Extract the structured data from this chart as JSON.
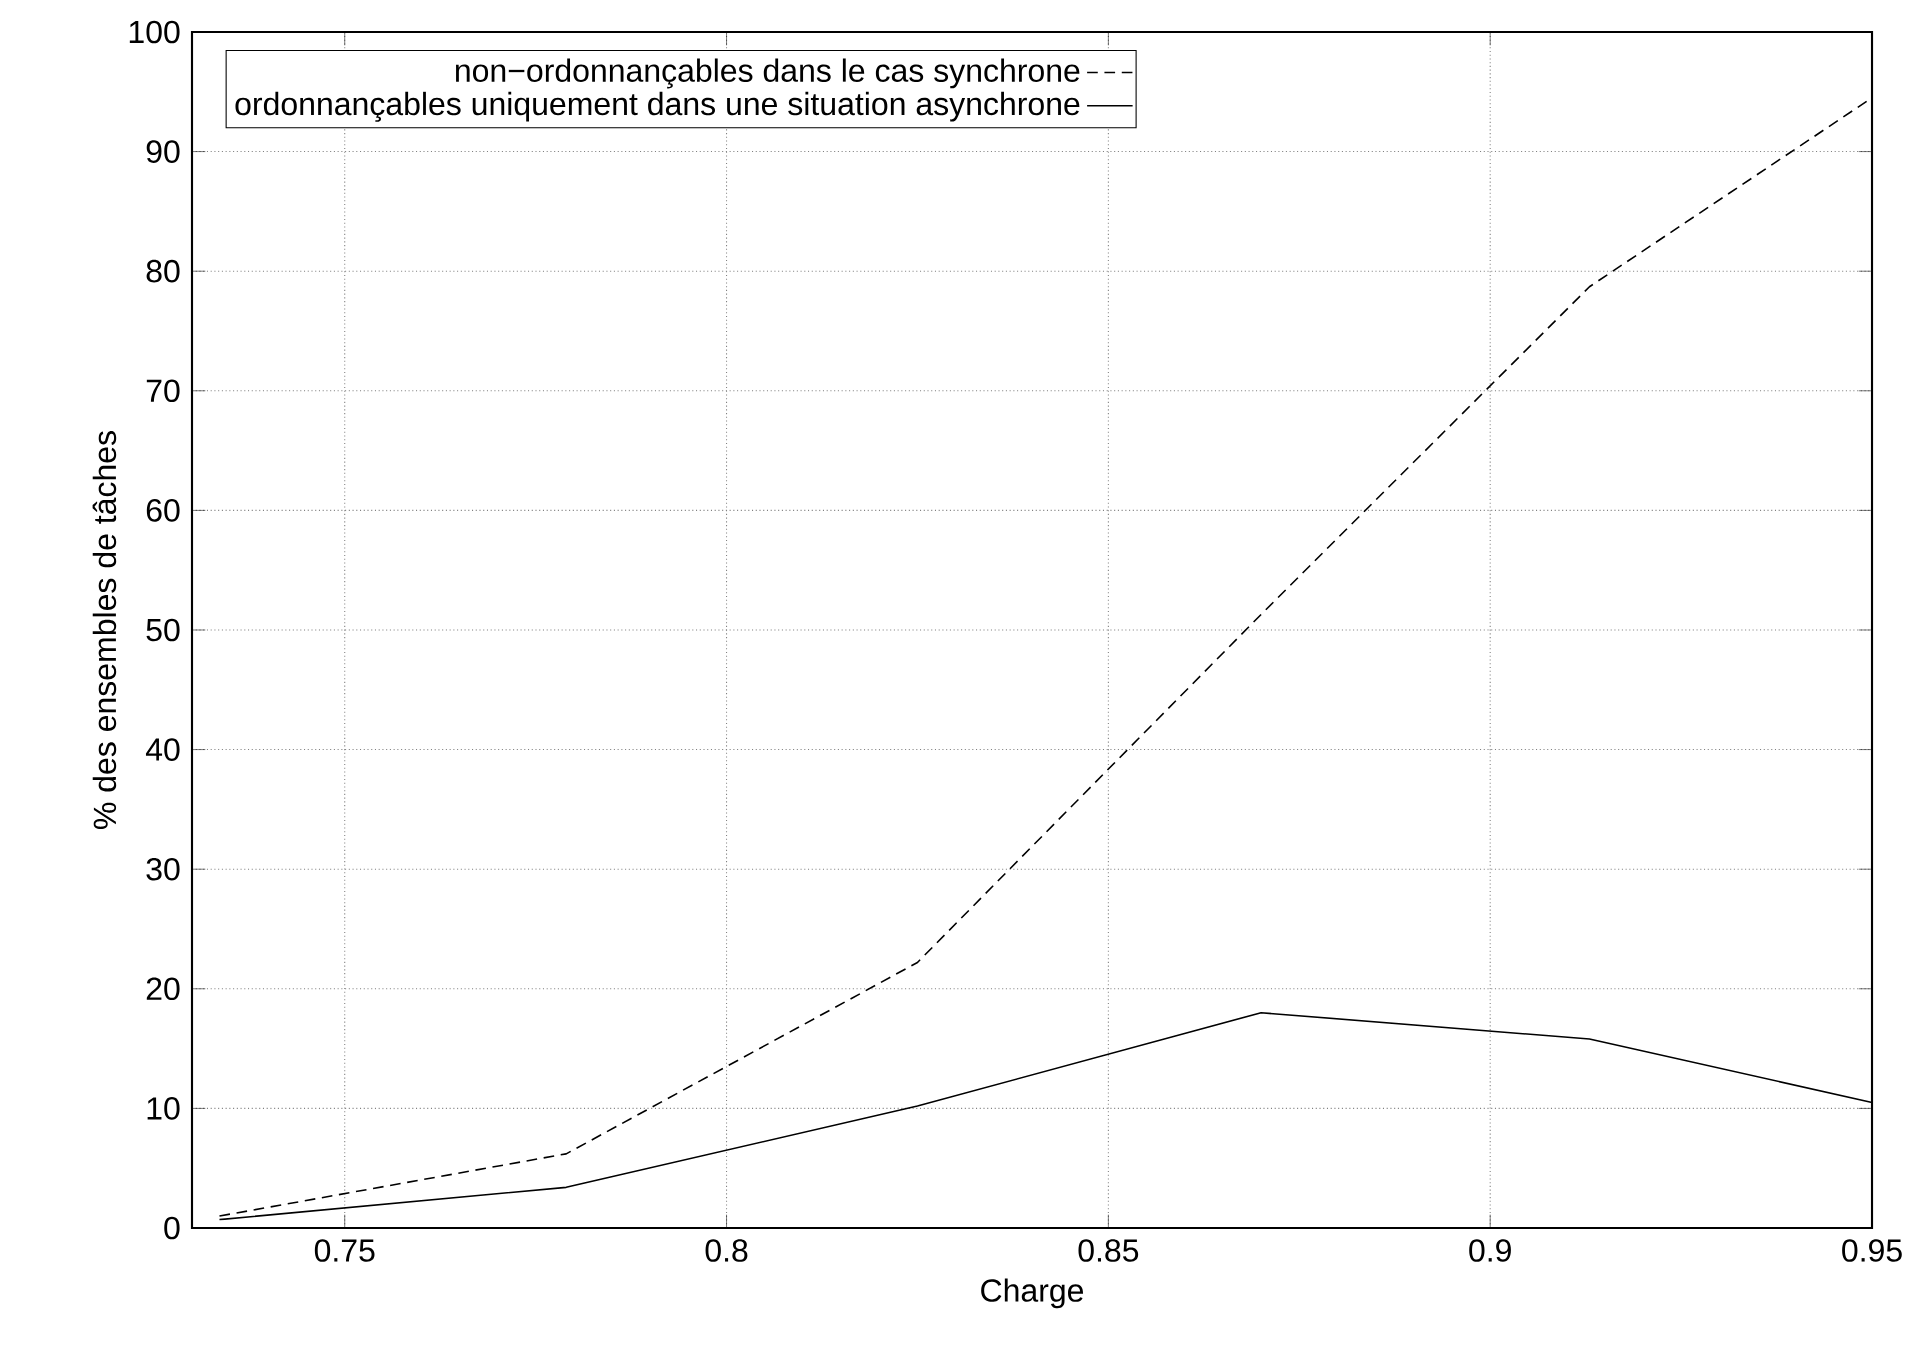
{
  "chart_data": {
    "type": "line",
    "xlabel": "Charge",
    "ylabel": "% des ensembles de tâches",
    "x": [
      0.7336,
      0.779,
      0.825,
      0.87,
      0.913,
      0.95
    ],
    "series": [
      {
        "name": "non−ordonnançables dans le cas synchrone",
        "color": "#000000",
        "line_style": "dashed",
        "values": [
          1.0,
          6.2,
          22.2,
          51.3,
          78.7,
          94.5
        ]
      },
      {
        "name": "ordonnançables uniquement dans une situation asynchrone",
        "color": "#000000",
        "line_style": "solid",
        "values": [
          0.7,
          3.4,
          10.2,
          18.0,
          15.8,
          10.5
        ]
      }
    ],
    "xlim": [
      0.73,
      0.95
    ],
    "ylim": [
      0,
      100
    ],
    "xticks": [
      0.75,
      0.8,
      0.85,
      0.9,
      0.95
    ],
    "yticks": [
      0,
      10,
      20,
      30,
      40,
      50,
      60,
      70,
      80,
      90,
      100
    ],
    "grid": true,
    "legend": "top left",
    "marker": "none"
  }
}
